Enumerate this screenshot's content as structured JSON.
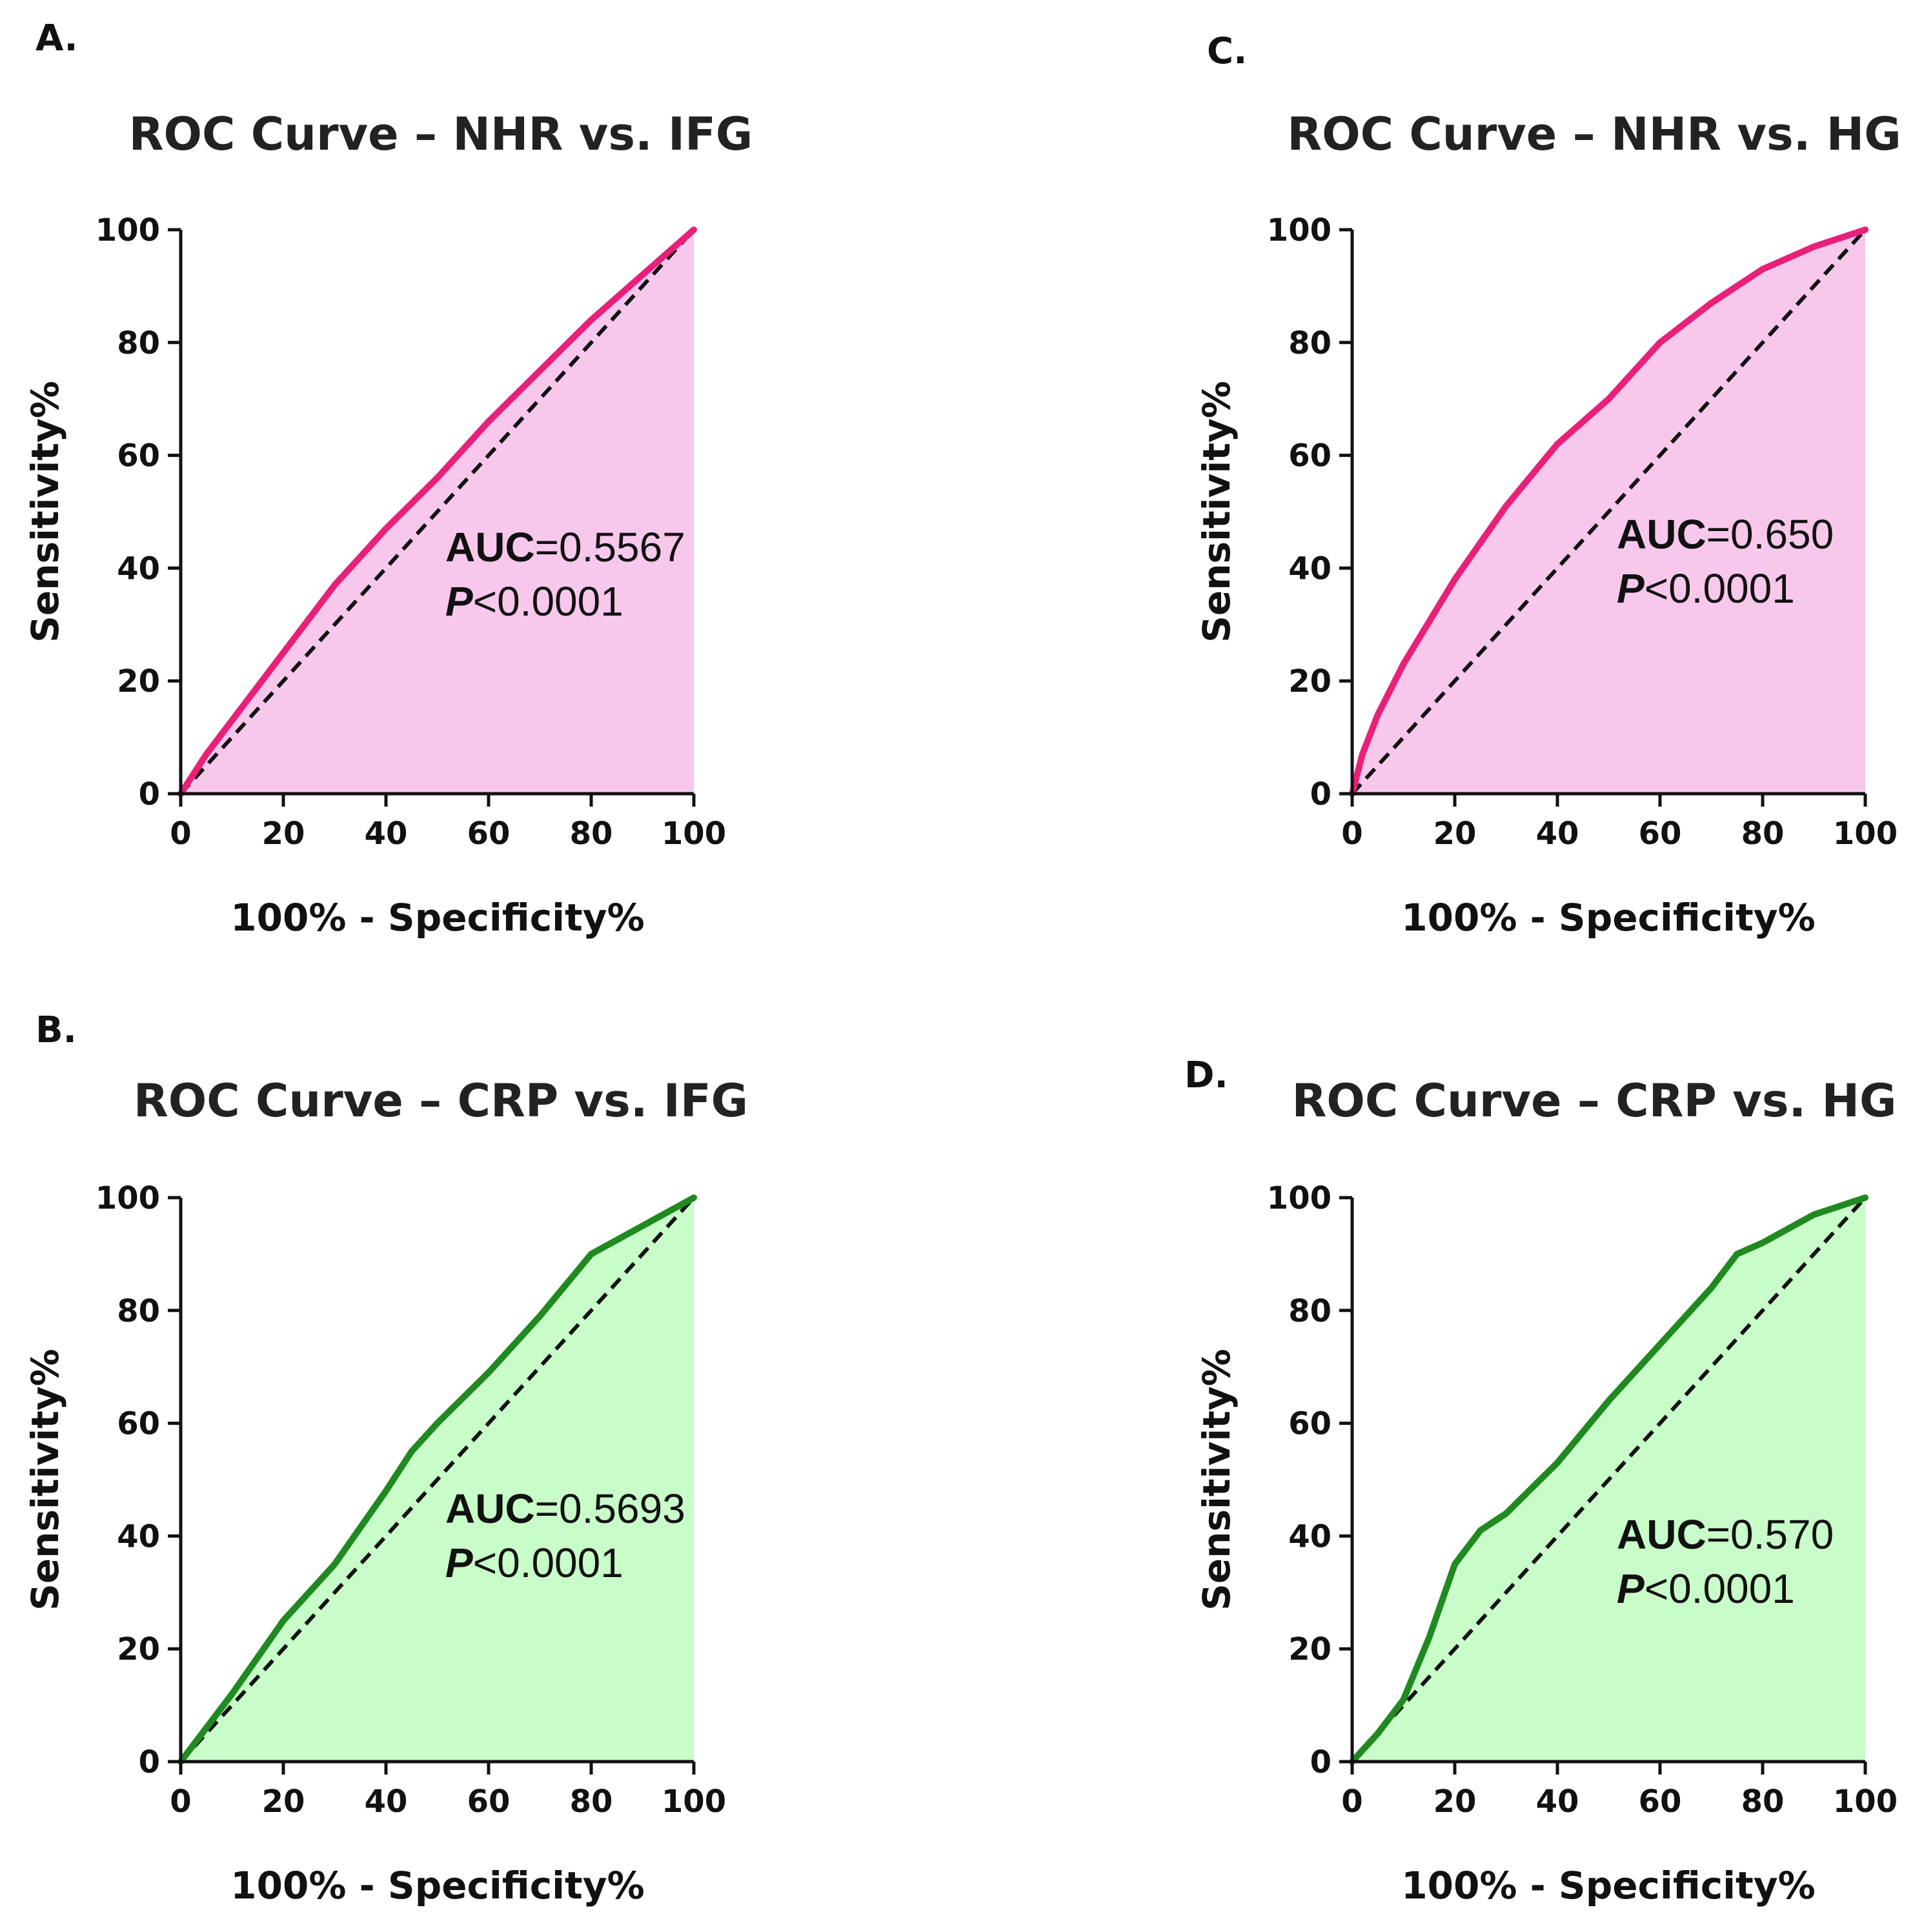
{
  "chart_data": [
    {
      "id": "A",
      "panel_label": "A.",
      "type": "line",
      "title": "ROC Curve – NHR vs. IFG",
      "xlabel": "100% - Specificity%",
      "ylabel": "Sensitivity%",
      "xlim": [
        0,
        100
      ],
      "ylim": [
        0,
        100
      ],
      "xticks": [
        "0",
        "20",
        "40",
        "60",
        "80",
        "100"
      ],
      "yticks": [
        "0",
        "20",
        "40",
        "60",
        "80",
        "100"
      ],
      "auc_label": "AUC",
      "auc_value": "=0.5567",
      "p_label": "P",
      "p_value": "<0.0001",
      "line_color": "#e8207a",
      "fill_color": "#f8c8ec",
      "series": [
        {
          "name": "ROC",
          "x": [
            0,
            5,
            10,
            20,
            30,
            40,
            50,
            60,
            70,
            80,
            90,
            100
          ],
          "y": [
            0,
            7,
            13,
            25,
            37,
            47,
            56,
            66,
            75,
            84,
            92,
            100
          ]
        },
        {
          "name": "reference",
          "x": [
            0,
            100
          ],
          "y": [
            0,
            100
          ]
        }
      ]
    },
    {
      "id": "B",
      "panel_label": "B.",
      "type": "line",
      "title": "ROC Curve – CRP vs. IFG",
      "xlabel": "100% - Specificity%",
      "ylabel": "Sensitivity%",
      "xlim": [
        0,
        100
      ],
      "ylim": [
        0,
        100
      ],
      "xticks": [
        "0",
        "20",
        "40",
        "60",
        "80",
        "100"
      ],
      "yticks": [
        "0",
        "20",
        "40",
        "60",
        "80",
        "100"
      ],
      "auc_label": "AUC",
      "auc_value": "=0.5693",
      "p_label": "P",
      "p_value": "<0.0001",
      "line_color": "#1f8a1f",
      "fill_color": "#c8fcc8",
      "series": [
        {
          "name": "ROC",
          "x": [
            0,
            5,
            10,
            20,
            30,
            40,
            45,
            50,
            60,
            70,
            80,
            90,
            100
          ],
          "y": [
            0,
            6,
            12,
            25,
            35,
            48,
            55,
            60,
            69,
            79,
            90,
            95,
            100
          ]
        },
        {
          "name": "reference",
          "x": [
            0,
            100
          ],
          "y": [
            0,
            100
          ]
        }
      ]
    },
    {
      "id": "C",
      "panel_label": "C.",
      "type": "line",
      "title": "ROC Curve – NHR vs. HG",
      "xlabel": "100% - Specificity%",
      "ylabel": "Sensitivity%",
      "xlim": [
        0,
        100
      ],
      "ylim": [
        0,
        100
      ],
      "xticks": [
        "0",
        "20",
        "40",
        "60",
        "80",
        "100"
      ],
      "yticks": [
        "0",
        "20",
        "40",
        "60",
        "80",
        "100"
      ],
      "auc_label": "AUC",
      "auc_value": "=0.650",
      "p_label": "P",
      "p_value": "<0.0001",
      "line_color": "#e8207a",
      "fill_color": "#f8c8ec",
      "series": [
        {
          "name": "ROC",
          "x": [
            0,
            2,
            5,
            10,
            20,
            30,
            40,
            50,
            60,
            70,
            80,
            90,
            100
          ],
          "y": [
            0,
            7,
            14,
            23,
            38,
            51,
            62,
            70,
            80,
            87,
            93,
            97,
            100
          ]
        },
        {
          "name": "reference",
          "x": [
            0,
            100
          ],
          "y": [
            0,
            100
          ]
        }
      ]
    },
    {
      "id": "D",
      "panel_label": "D.",
      "type": "line",
      "title": "ROC Curve – CRP vs. HG",
      "xlabel": "100% - Specificity%",
      "ylabel": "Sensitivity%",
      "xlim": [
        0,
        100
      ],
      "ylim": [
        0,
        100
      ],
      "xticks": [
        "0",
        "20",
        "40",
        "60",
        "80",
        "100"
      ],
      "yticks": [
        "0",
        "20",
        "40",
        "60",
        "80",
        "100"
      ],
      "auc_label": "AUC",
      "auc_value": "=0.570",
      "p_label": "P",
      "p_value": "<0.0001",
      "line_color": "#1f8a1f",
      "fill_color": "#c8fcc8",
      "series": [
        {
          "name": "ROC",
          "x": [
            0,
            5,
            10,
            15,
            20,
            25,
            30,
            40,
            50,
            60,
            70,
            75,
            80,
            90,
            100
          ],
          "y": [
            0,
            5,
            11,
            22,
            35,
            41,
            44,
            53,
            64,
            74,
            84,
            90,
            92,
            97,
            100
          ]
        },
        {
          "name": "reference",
          "x": [
            0,
            100
          ],
          "y": [
            0,
            100
          ]
        }
      ]
    }
  ]
}
